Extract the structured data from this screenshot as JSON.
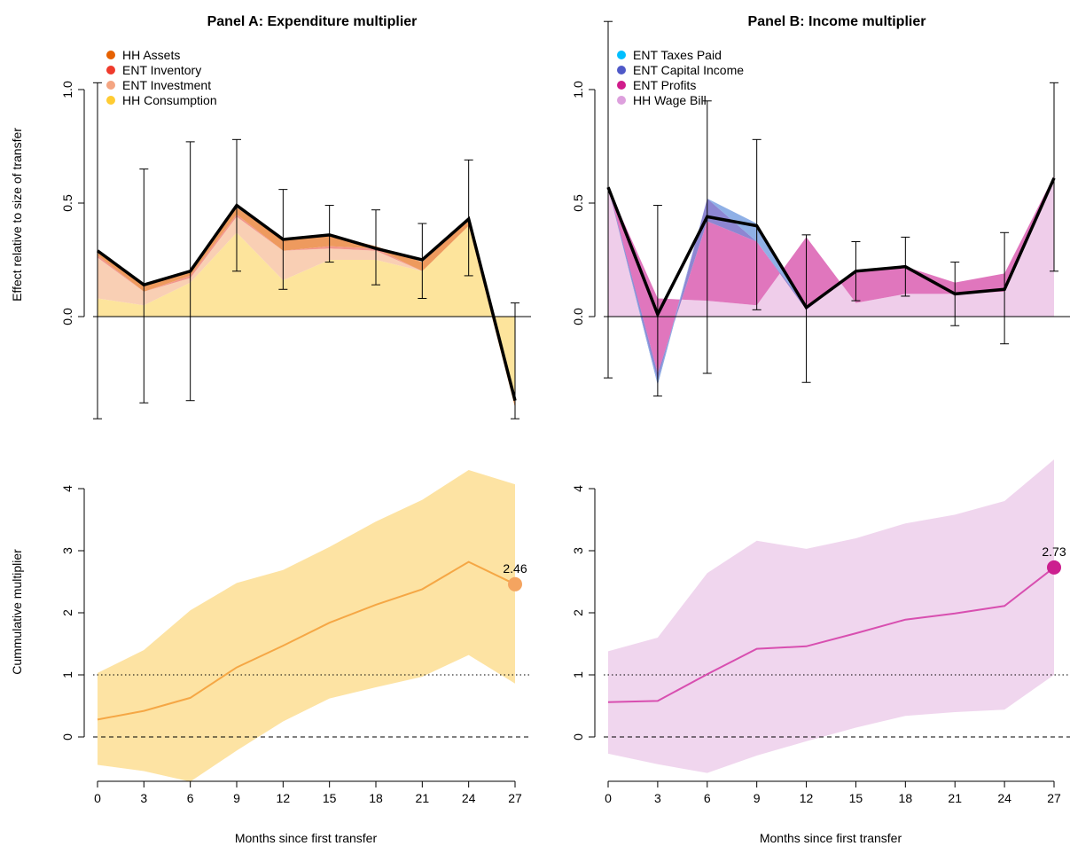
{
  "figure": {
    "xlabel": "Months since first transfer",
    "ylabel_top": "Effect relative to size of transfer",
    "ylabel_bottom": "Cummulative multiplier"
  },
  "chart_data": [
    {
      "panel": "A-top",
      "type": "area",
      "title": "Panel A: Expenditure multiplier",
      "ylabel": "Effect relative to size of transfer",
      "x": [
        0,
        3,
        6,
        9,
        12,
        15,
        18,
        21,
        24,
        27
      ],
      "xlim": [
        0,
        27
      ],
      "ylim": [
        -0.45,
        1.25
      ],
      "yticks": [
        0.0,
        0.5,
        1.0
      ],
      "ytick_labels": [
        "0.0",
        "0.5",
        "1.0"
      ],
      "legend_position": "top-left",
      "series": [
        {
          "name": "HH Consumption",
          "color": "#ffcc33",
          "fill": "#fde49c",
          "values": [
            0.08,
            0.05,
            0.15,
            0.37,
            0.16,
            0.25,
            0.25,
            0.2,
            0.4,
            -0.4
          ]
        },
        {
          "name": "ENT Investment",
          "color": "#f4a582",
          "fill": "#f9cfb4",
          "values": [
            0.18,
            0.06,
            0.02,
            0.07,
            0.13,
            0.05,
            0.04,
            0.0,
            0.0,
            0.0
          ]
        },
        {
          "name": "ENT Inventory",
          "color": "#ef3b2c",
          "fill": "#f3968c",
          "values": [
            0.01,
            0.0,
            0.01,
            0.01,
            0.0,
            0.01,
            0.01,
            0.0,
            0.0,
            0.0
          ]
        },
        {
          "name": "HH Assets",
          "color": "#e66101",
          "fill": "#ee9a5e",
          "values": [
            0.02,
            0.03,
            0.02,
            0.03,
            0.05,
            0.05,
            0.01,
            0.04,
            0.03,
            0.02
          ]
        }
      ],
      "total": [
        0.29,
        0.14,
        0.2,
        0.49,
        0.34,
        0.36,
        0.3,
        0.25,
        0.43,
        -0.37
      ],
      "ci_low": [
        -0.45,
        -0.38,
        -0.37,
        0.2,
        0.12,
        0.24,
        0.14,
        0.08,
        0.18,
        -0.45
      ],
      "ci_high": [
        1.03,
        0.65,
        0.77,
        0.78,
        0.56,
        0.49,
        0.47,
        0.41,
        0.69,
        0.06
      ]
    },
    {
      "panel": "B-top",
      "type": "area",
      "title": "Panel B: Income multiplier",
      "x": [
        0,
        3,
        6,
        9,
        12,
        15,
        18,
        21,
        24,
        27
      ],
      "xlim": [
        0,
        27
      ],
      "ylim": [
        -0.45,
        1.25
      ],
      "yticks": [
        0.0,
        0.5,
        1.0
      ],
      "ytick_labels": [
        "0.0",
        "0.5",
        "1.0"
      ],
      "legend_position": "top-left",
      "series": [
        {
          "name": "HH Wage Bill",
          "color": "#dda0dd",
          "fill": "#efcdea",
          "values": [
            0.57,
            0.08,
            0.07,
            0.05,
            0.35,
            0.06,
            0.1,
            0.1,
            0.11,
            0.6
          ]
        },
        {
          "name": "ENT Profits",
          "color": "#d01c8b",
          "fill": "#e076bd",
          "values": [
            0.0,
            -0.33,
            0.35,
            0.28,
            -0.32,
            0.14,
            0.12,
            0.05,
            0.08,
            0.02
          ]
        },
        {
          "name": "ENT Capital Income",
          "color": "#4f59c8",
          "fill": "#8d86d2",
          "values": [
            0.0,
            -0.05,
            0.1,
            0.0,
            0.01,
            0.0,
            0.0,
            0.0,
            0.0,
            0.0
          ]
        },
        {
          "name": "ENT Taxes Paid",
          "color": "#00bfff",
          "fill": "#8fb0e6",
          "values": [
            0.0,
            0.02,
            0.0,
            0.08,
            0.0,
            0.0,
            0.0,
            0.0,
            0.0,
            0.0
          ]
        }
      ],
      "total": [
        0.57,
        0.01,
        0.44,
        0.4,
        0.04,
        0.2,
        0.22,
        0.1,
        0.12,
        0.61
      ],
      "ci_low": [
        -0.27,
        -0.35,
        -0.25,
        0.03,
        -0.29,
        0.07,
        0.09,
        -0.04,
        -0.12,
        0.2
      ],
      "ci_high": [
        1.3,
        0.49,
        0.95,
        0.78,
        0.36,
        0.33,
        0.35,
        0.24,
        0.37,
        1.03
      ]
    },
    {
      "panel": "A-bottom",
      "type": "line",
      "ylabel": "Cummulative multiplier",
      "xlabel": "Months since first transfer",
      "x": [
        0,
        3,
        6,
        9,
        12,
        15,
        18,
        21,
        24,
        27
      ],
      "xtick_labels": [
        "0",
        "3",
        "6",
        "9",
        "12",
        "15",
        "18",
        "21",
        "24",
        "27"
      ],
      "xlim": [
        0,
        27
      ],
      "ylim": [
        -0.7,
        4.5
      ],
      "yticks": [
        0,
        1,
        2,
        3,
        4
      ],
      "ytick_labels": [
        "0",
        "1",
        "2",
        "3",
        "4"
      ],
      "values": [
        0.28,
        0.42,
        0.63,
        1.12,
        1.47,
        1.84,
        2.13,
        2.38,
        2.82,
        2.46
      ],
      "ci_low": [
        -0.45,
        -0.55,
        -0.72,
        -0.22,
        0.25,
        0.62,
        0.8,
        0.97,
        1.32,
        0.86
      ],
      "ci_high": [
        1.03,
        1.4,
        2.04,
        2.48,
        2.69,
        3.06,
        3.47,
        3.82,
        4.3,
        4.07
      ],
      "line_color": "#f5a745",
      "band_color": "#fde3a3",
      "end_marker_color": "#f4a460",
      "end_label": "2.46",
      "hlines": [
        {
          "y": 1,
          "style": "dotted"
        },
        {
          "y": 0,
          "style": "dashed"
        }
      ]
    },
    {
      "panel": "B-bottom",
      "type": "line",
      "xlabel": "Months since first transfer",
      "x": [
        0,
        3,
        6,
        9,
        12,
        15,
        18,
        21,
        24,
        27
      ],
      "xtick_labels": [
        "0",
        "3",
        "6",
        "9",
        "12",
        "15",
        "18",
        "21",
        "24",
        "27"
      ],
      "xlim": [
        0,
        27
      ],
      "ylim": [
        -0.7,
        4.5
      ],
      "yticks": [
        0,
        1,
        2,
        3,
        4
      ],
      "ytick_labels": [
        "0",
        "1",
        "2",
        "3",
        "4"
      ],
      "values": [
        0.56,
        0.58,
        1.01,
        1.42,
        1.46,
        1.67,
        1.89,
        1.99,
        2.11,
        2.73
      ],
      "ci_low": [
        -0.27,
        -0.44,
        -0.58,
        -0.3,
        -0.07,
        0.15,
        0.34,
        0.4,
        0.44,
        1.0
      ],
      "ci_high": [
        1.38,
        1.6,
        2.64,
        3.16,
        3.03,
        3.2,
        3.44,
        3.58,
        3.8,
        4.47
      ],
      "line_color": "#d84fb0",
      "band_color": "#f0d6ee",
      "end_marker_color": "#cc1f8f",
      "end_label": "2.73",
      "hlines": [
        {
          "y": 1,
          "style": "dotted"
        },
        {
          "y": 0,
          "style": "dashed"
        }
      ]
    }
  ]
}
